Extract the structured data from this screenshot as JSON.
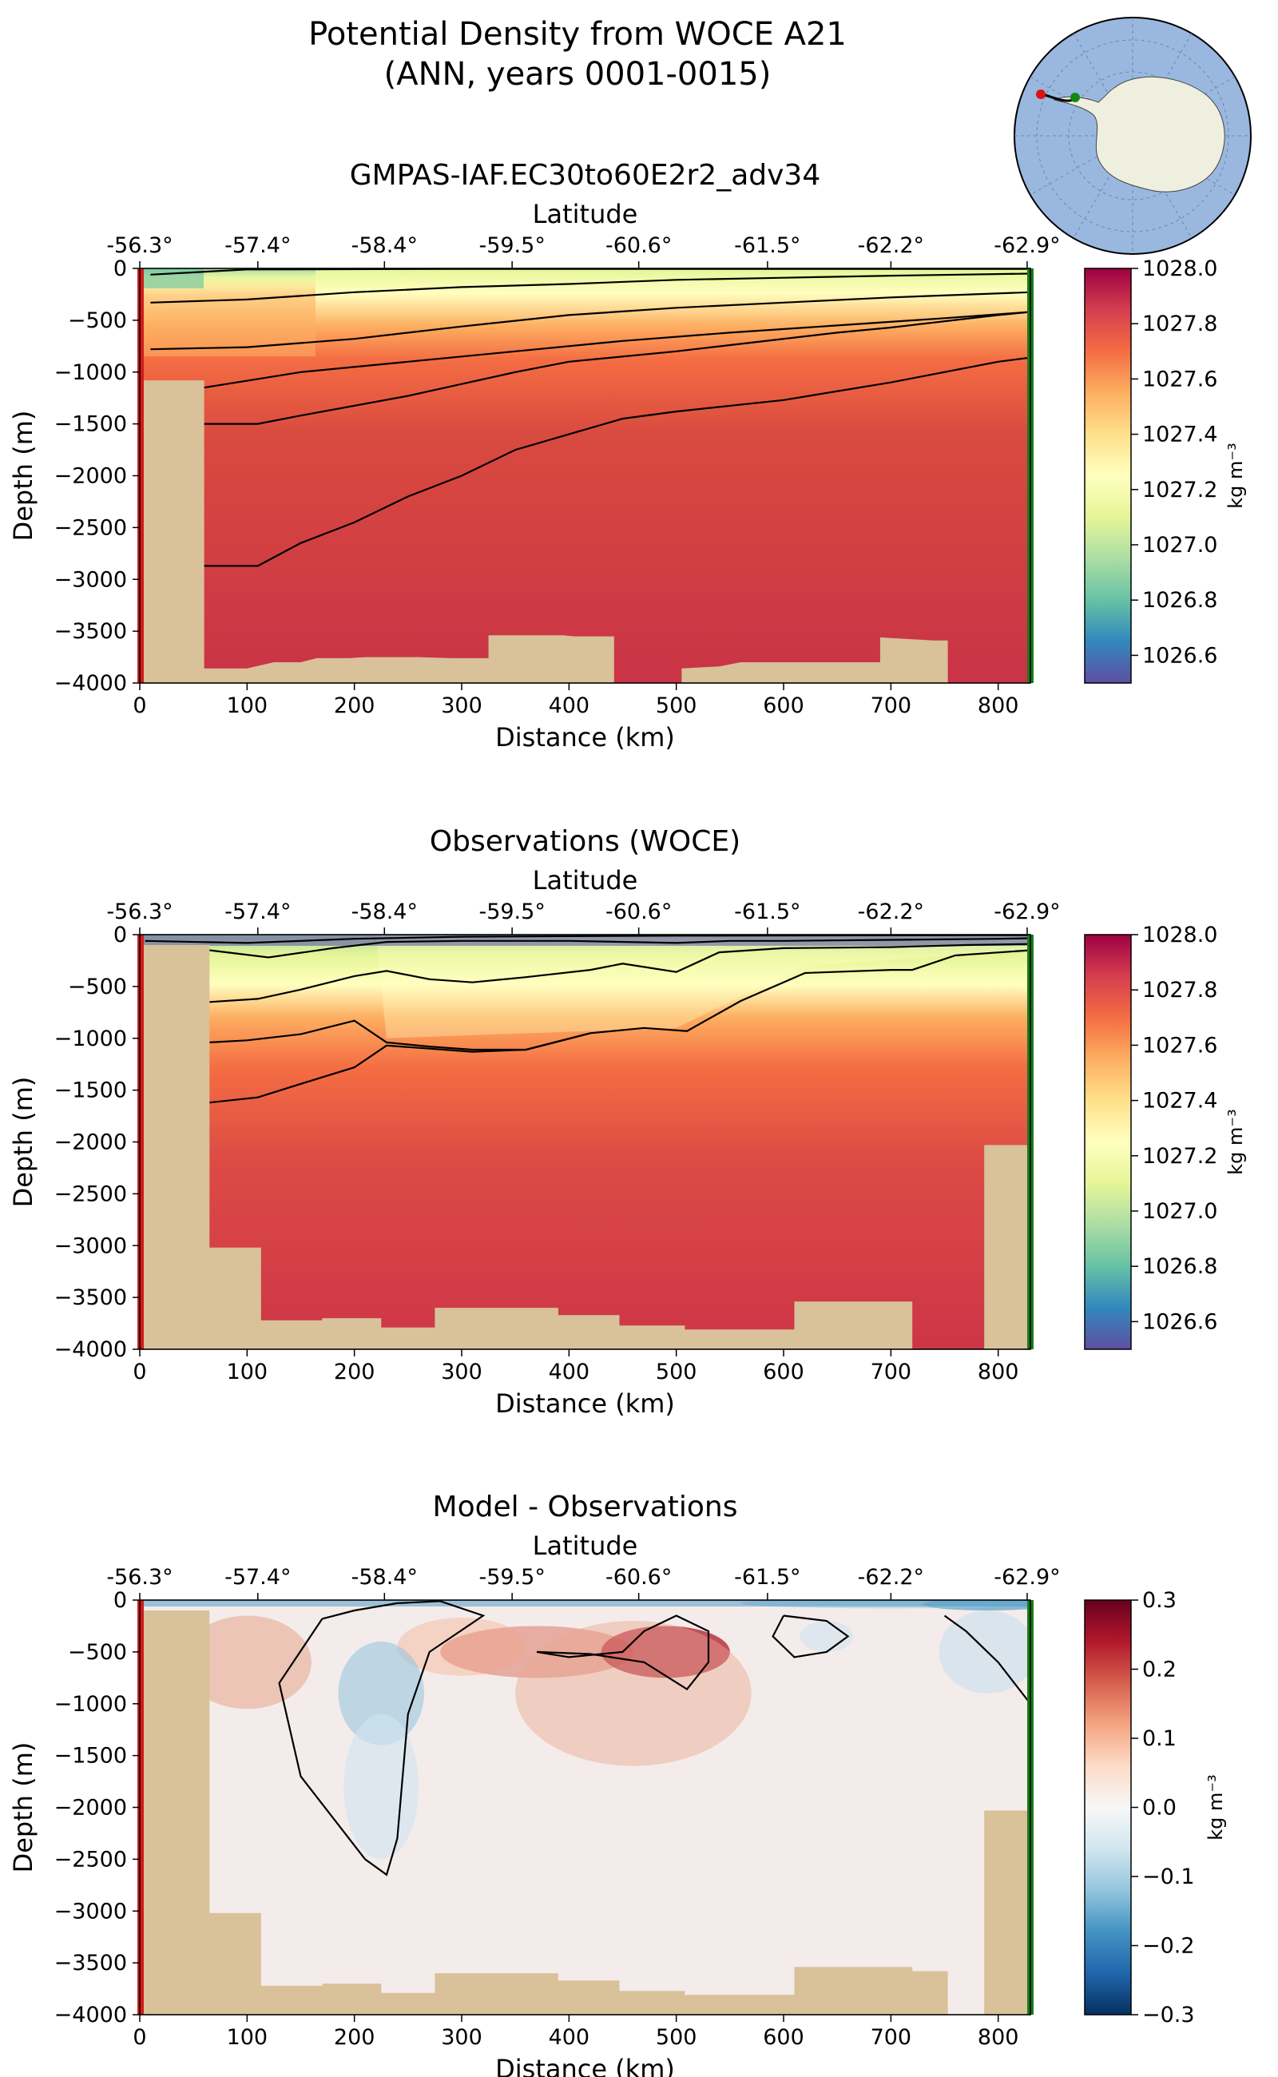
{
  "figure": {
    "title_line1": "Potential Density from WOCE A21",
    "title_line2": "(ANN, years 0001-0015)"
  },
  "inset_map": {
    "label": "",
    "ocean_color": "#9ab8df",
    "land_color": "#efefdf",
    "start_marker_color": "#dd1111",
    "end_marker_color": "#118811"
  },
  "chart_data": [
    {
      "type": "heatmap",
      "panel_id": "model",
      "title": "GMPAS-IAF.EC30to60E2r2_adv34",
      "xlabel": "Distance (km)",
      "ylabel": "Depth (m)",
      "top_axis_label": "Latitude",
      "xlim": [
        0,
        830
      ],
      "ylim": [
        -4000,
        0
      ],
      "x_ticks": [
        "0",
        "100",
        "200",
        "300",
        "400",
        "500",
        "600",
        "700",
        "800"
      ],
      "y_ticks": [
        "0",
        "−500",
        "−1000",
        "−1500",
        "−2000",
        "−2500",
        "−3000",
        "−3500",
        "−4000"
      ],
      "top_ticks": [
        "-56.3°",
        "-57.4°",
        "-58.4°",
        "-59.5°",
        "-60.6°",
        "-61.5°",
        "-62.2°",
        "-62.9°"
      ],
      "colormap": "Spectral_r",
      "clim": [
        1026.5,
        1028.0
      ],
      "colorbar_label": "kg m⁻³",
      "colorbar_ticks": [
        "1028.0",
        "1027.8",
        "1027.6",
        "1027.4",
        "1027.2",
        "1027.0",
        "1026.8",
        "1026.6"
      ],
      "contour_levels": [
        {
          "level": "contour-1",
          "points": [
            [
              10,
              -60
            ],
            [
              100,
              -10
            ],
            [
              300,
              -5
            ],
            [
              830,
              -5
            ]
          ]
        },
        {
          "level": "contour-2",
          "points": [
            [
              10,
              -330
            ],
            [
              100,
              -300
            ],
            [
              200,
              -230
            ],
            [
              300,
              -180
            ],
            [
              400,
              -150
            ],
            [
              500,
              -110
            ],
            [
              600,
              -90
            ],
            [
              700,
              -70
            ],
            [
              830,
              -50
            ]
          ]
        },
        {
          "level": "contour-3",
          "points": [
            [
              10,
              -780
            ],
            [
              100,
              -760
            ],
            [
              200,
              -680
            ],
            [
              300,
              -560
            ],
            [
              400,
              -450
            ],
            [
              500,
              -380
            ],
            [
              600,
              -330
            ],
            [
              700,
              -280
            ],
            [
              830,
              -230
            ]
          ]
        },
        {
          "level": "contour-4",
          "points": [
            [
              60,
              -1150
            ],
            [
              150,
              -1000
            ],
            [
              250,
              -900
            ],
            [
              350,
              -800
            ],
            [
              450,
              -700
            ],
            [
              550,
              -620
            ],
            [
              650,
              -550
            ],
            [
              750,
              -480
            ],
            [
              830,
              -420
            ]
          ]
        },
        {
          "level": "contour-5",
          "points": [
            [
              60,
              -1500
            ],
            [
              110,
              -1500
            ],
            [
              150,
              -1420
            ],
            [
              250,
              -1230
            ],
            [
              350,
              -1000
            ],
            [
              400,
              -900
            ],
            [
              500,
              -800
            ],
            [
              550,
              -740
            ],
            [
              650,
              -620
            ],
            [
              700,
              -570
            ],
            [
              800,
              -450
            ],
            [
              830,
              -420
            ]
          ]
        },
        {
          "level": "contour-6",
          "points": [
            [
              60,
              -2870
            ],
            [
              110,
              -2870
            ],
            [
              150,
              -2650
            ],
            [
              200,
              -2450
            ],
            [
              250,
              -2200
            ],
            [
              300,
              -2000
            ],
            [
              350,
              -1750
            ],
            [
              400,
              -1600
            ],
            [
              450,
              -1450
            ],
            [
              500,
              -1380
            ],
            [
              600,
              -1270
            ],
            [
              700,
              -1100
            ],
            [
              800,
              -900
            ],
            [
              830,
              -860
            ]
          ]
        }
      ],
      "bathymetry": [
        [
          0,
          -1080
        ],
        [
          60,
          -1080
        ],
        [
          60,
          -3860
        ],
        [
          100,
          -3860
        ],
        [
          125,
          -3800
        ],
        [
          150,
          -3800
        ],
        [
          165,
          -3760
        ],
        [
          195,
          -3760
        ],
        [
          210,
          -3750
        ],
        [
          260,
          -3750
        ],
        [
          290,
          -3760
        ],
        [
          325,
          -3760
        ],
        [
          325,
          -3540
        ],
        [
          395,
          -3540
        ],
        [
          405,
          -3550
        ],
        [
          442,
          -3550
        ],
        [
          442,
          -4000
        ],
        [
          505,
          -4000
        ],
        [
          505,
          -3860
        ],
        [
          540,
          -3840
        ],
        [
          560,
          -3800
        ],
        [
          600,
          -3800
        ],
        [
          640,
          -3800
        ],
        [
          690,
          -3800
        ],
        [
          690,
          -3560
        ],
        [
          740,
          -3590
        ],
        [
          753,
          -3590
        ],
        [
          753,
          -4000
        ]
      ]
    },
    {
      "type": "heatmap",
      "panel_id": "obs",
      "title": "Observations (WOCE)",
      "xlabel": "Distance (km)",
      "ylabel": "Depth (m)",
      "top_axis_label": "Latitude",
      "xlim": [
        0,
        830
      ],
      "ylim": [
        -4000,
        0
      ],
      "x_ticks": [
        "0",
        "100",
        "200",
        "300",
        "400",
        "500",
        "600",
        "700",
        "800"
      ],
      "y_ticks": [
        "0",
        "−500",
        "−1000",
        "−1500",
        "−2000",
        "−2500",
        "−3000",
        "−3500",
        "−4000"
      ],
      "top_ticks": [
        "-56.3°",
        "-57.4°",
        "-58.4°",
        "-59.5°",
        "-60.6°",
        "-61.5°",
        "-62.2°",
        "-62.9°"
      ],
      "colormap": "Spectral_r",
      "clim": [
        1026.5,
        1028.0
      ],
      "colorbar_label": "kg m⁻³",
      "colorbar_ticks": [
        "1028.0",
        "1027.8",
        "1027.6",
        "1027.4",
        "1027.2",
        "1027.0",
        "1026.8",
        "1026.6"
      ],
      "contour_levels": [
        {
          "level": "contour-1",
          "points": [
            [
              5,
              -60
            ],
            [
              100,
              -80
            ],
            [
              200,
              -40
            ],
            [
              300,
              -20
            ],
            [
              500,
              -10
            ],
            [
              830,
              -5
            ]
          ]
        },
        {
          "level": "contour-2",
          "points": [
            [
              65,
              -150
            ],
            [
              120,
              -220
            ],
            [
              180,
              -130
            ],
            [
              230,
              -70
            ],
            [
              300,
              -60
            ],
            [
              400,
              -60
            ],
            [
              500,
              -80
            ],
            [
              550,
              -60
            ],
            [
              600,
              -60
            ],
            [
              700,
              -50
            ],
            [
              800,
              -40
            ],
            [
              830,
              -35
            ]
          ]
        },
        {
          "level": "contour-3",
          "points": [
            [
              65,
              -650
            ],
            [
              110,
              -620
            ],
            [
              150,
              -530
            ],
            [
              200,
              -400
            ],
            [
              230,
              -350
            ],
            [
              270,
              -430
            ],
            [
              310,
              -460
            ],
            [
              360,
              -410
            ],
            [
              420,
              -340
            ],
            [
              450,
              -280
            ],
            [
              500,
              -360
            ],
            [
              540,
              -170
            ],
            [
              600,
              -130
            ],
            [
              700,
              -120
            ],
            [
              770,
              -100
            ],
            [
              830,
              -90
            ]
          ]
        },
        {
          "level": "contour-4",
          "points": [
            [
              65,
              -1040
            ],
            [
              100,
              -1020
            ],
            [
              150,
              -960
            ],
            [
              200,
              -830
            ],
            [
              230,
              -1040
            ],
            [
              270,
              -1080
            ],
            [
              310,
              -1110
            ],
            [
              360,
              -1110
            ],
            [
              420,
              -950
            ],
            [
              470,
              -900
            ],
            [
              510,
              -930
            ],
            [
              560,
              -640
            ],
            [
              620,
              -370
            ],
            [
              700,
              -340
            ],
            [
              720,
              -340
            ],
            [
              760,
              -200
            ],
            [
              830,
              -150
            ]
          ]
        },
        {
          "level": "contour-5",
          "points": [
            [
              65,
              -1620
            ],
            [
              110,
              -1570
            ],
            [
              150,
              -1440
            ],
            [
              200,
              -1280
            ],
            [
              230,
              -1070
            ],
            [
              270,
              -1100
            ],
            [
              310,
              -1130
            ],
            [
              360,
              -1110
            ],
            [
              420,
              -950
            ]
          ]
        }
      ],
      "bathymetry": [
        [
          0,
          -100
        ],
        [
          65,
          -100
        ],
        [
          65,
          -3020
        ],
        [
          113,
          -3020
        ],
        [
          113,
          -3720
        ],
        [
          170,
          -3720
        ],
        [
          170,
          -3700
        ],
        [
          225,
          -3700
        ],
        [
          225,
          -3790
        ],
        [
          275,
          -3790
        ],
        [
          275,
          -3600
        ],
        [
          390,
          -3600
        ],
        [
          390,
          -3670
        ],
        [
          447,
          -3670
        ],
        [
          447,
          -3770
        ],
        [
          508,
          -3770
        ],
        [
          508,
          -3810
        ],
        [
          610,
          -3810
        ],
        [
          610,
          -3540
        ],
        [
          720,
          -3540
        ],
        [
          720,
          -4000
        ],
        [
          787,
          -4000
        ],
        [
          787,
          -2030
        ],
        [
          830,
          -2030
        ],
        [
          830,
          -4000
        ]
      ]
    },
    {
      "type": "heatmap",
      "panel_id": "bias",
      "title": "Model - Observations",
      "xlabel": "Distance (km)",
      "ylabel": "Depth (m)",
      "top_axis_label": "Latitude",
      "xlim": [
        0,
        830
      ],
      "ylim": [
        -4000,
        0
      ],
      "x_ticks": [
        "0",
        "100",
        "200",
        "300",
        "400",
        "500",
        "600",
        "700",
        "800"
      ],
      "y_ticks": [
        "0",
        "−500",
        "−1000",
        "−1500",
        "−2000",
        "−2500",
        "−3000",
        "−3500",
        "−4000"
      ],
      "top_ticks": [
        "-56.3°",
        "-57.4°",
        "-58.4°",
        "-59.5°",
        "-60.6°",
        "-61.5°",
        "-62.2°",
        "-62.9°"
      ],
      "colormap": "RdBu_r",
      "clim": [
        -0.3,
        0.3
      ],
      "colorbar_label": "kg m⁻³",
      "colorbar_ticks": [
        "0.3",
        "0.2",
        "0.1",
        "0.0",
        "−0.1",
        "−0.2",
        "−0.3"
      ],
      "contour_levels": [
        {
          "level": "zero-1",
          "points": [
            [
              170,
              -180
            ],
            [
              200,
              -100
            ],
            [
              240,
              -30
            ],
            [
              280,
              -10
            ],
            [
              320,
              -150
            ],
            [
              270,
              -500
            ],
            [
              250,
              -1100
            ],
            [
              245,
              -1700
            ],
            [
              240,
              -2300
            ],
            [
              230,
              -2650
            ],
            [
              210,
              -2500
            ],
            [
              150,
              -1700
            ],
            [
              130,
              -800
            ],
            [
              170,
              -180
            ]
          ]
        },
        {
          "level": "zero-2",
          "points": [
            [
              370,
              -500
            ],
            [
              400,
              -550
            ],
            [
              450,
              -500
            ],
            [
              470,
              -300
            ],
            [
              500,
              -150
            ],
            [
              530,
              -300
            ],
            [
              530,
              -600
            ],
            [
              510,
              -860
            ],
            [
              470,
              -600
            ],
            [
              420,
              -520
            ],
            [
              370,
              -500
            ]
          ]
        },
        {
          "level": "zero-3",
          "points": [
            [
              600,
              -150
            ],
            [
              640,
              -200
            ],
            [
              660,
              -350
            ],
            [
              640,
              -500
            ],
            [
              610,
              -550
            ],
            [
              590,
              -350
            ],
            [
              600,
              -150
            ]
          ]
        },
        {
          "level": "zero-4",
          "points": [
            [
              750,
              -150
            ],
            [
              770,
              -300
            ],
            [
              800,
              -600
            ],
            [
              830,
              -1000
            ]
          ]
        }
      ],
      "bathymetry": [
        [
          0,
          -100
        ],
        [
          65,
          -100
        ],
        [
          65,
          -3020
        ],
        [
          113,
          -3020
        ],
        [
          113,
          -3720
        ],
        [
          170,
          -3720
        ],
        [
          170,
          -3700
        ],
        [
          225,
          -3700
        ],
        [
          225,
          -3790
        ],
        [
          275,
          -3790
        ],
        [
          275,
          -3600
        ],
        [
          390,
          -3600
        ],
        [
          390,
          -3670
        ],
        [
          447,
          -3670
        ],
        [
          447,
          -3770
        ],
        [
          508,
          -3770
        ],
        [
          508,
          -3810
        ],
        [
          610,
          -3810
        ],
        [
          610,
          -3540
        ],
        [
          720,
          -3540
        ],
        [
          720,
          -3580
        ],
        [
          753,
          -3580
        ],
        [
          753,
          -4000
        ],
        [
          787,
          -4000
        ],
        [
          787,
          -2030
        ],
        [
          830,
          -2030
        ],
        [
          830,
          -4000
        ]
      ]
    }
  ]
}
